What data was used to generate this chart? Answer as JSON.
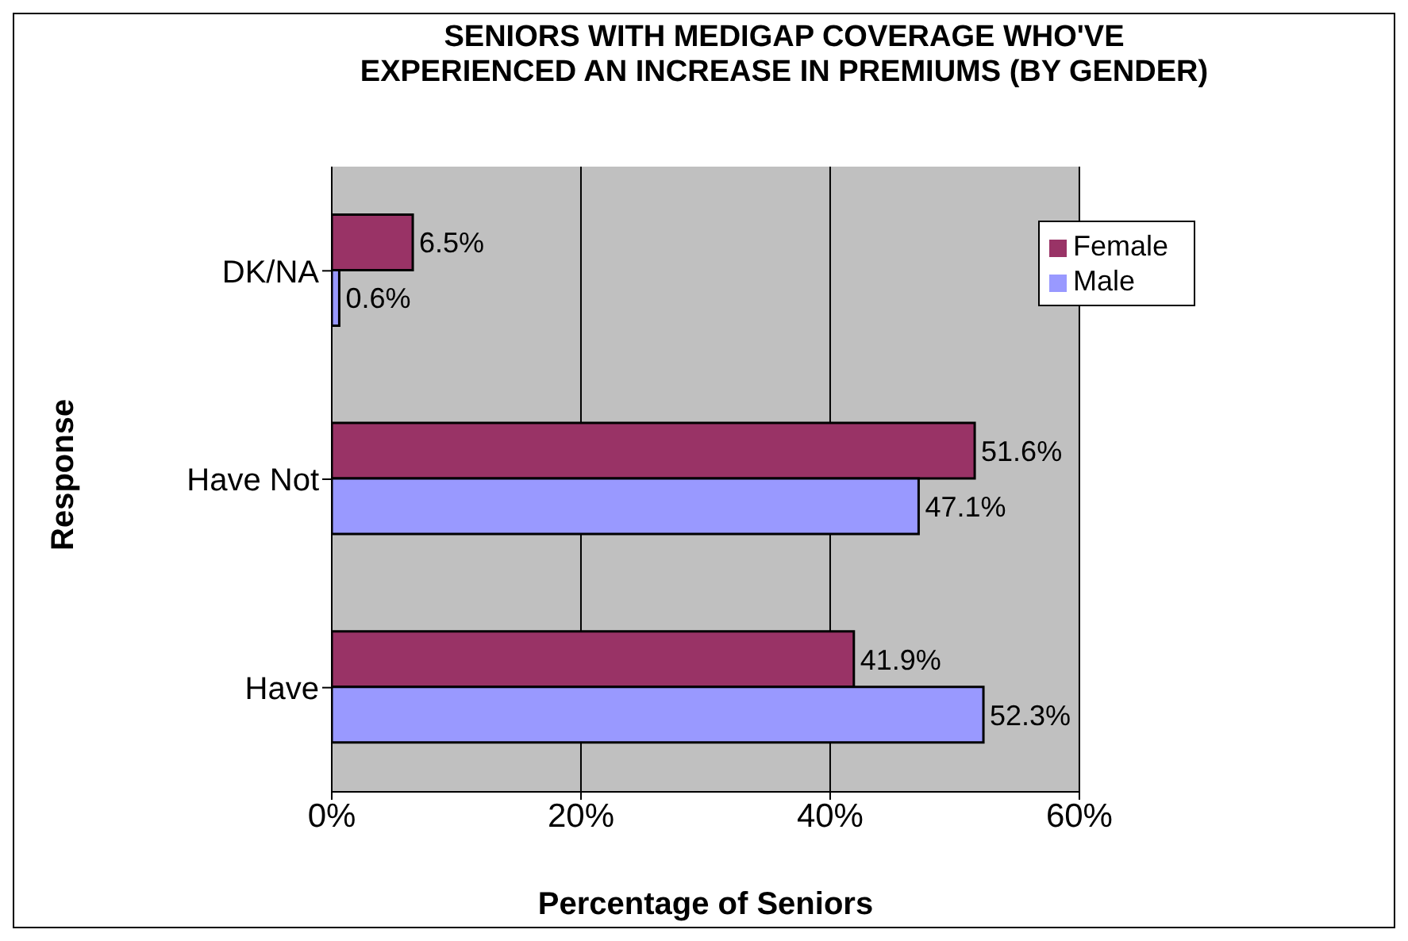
{
  "chart_data": {
    "type": "bar",
    "orientation": "horizontal",
    "title": "SENIORS WITH MEDIGAP COVERAGE WHO'VE EXPERIENCED AN INCREASE IN PREMIUMS (BY GENDER)",
    "xlabel": "Percentage of Seniors",
    "ylabel": "Response",
    "categories": [
      "DK/NA",
      "Have Not",
      "Have"
    ],
    "series": [
      {
        "name": "Female",
        "color": "#993366",
        "values": [
          6.5,
          51.6,
          41.9
        ],
        "value_labels": [
          "6.5%",
          "51.6%",
          "41.9%"
        ]
      },
      {
        "name": "Male",
        "color": "#9999ff",
        "values": [
          0.6,
          47.1,
          52.3
        ],
        "value_labels": [
          "0.6%",
          "47.1%",
          "52.3%"
        ]
      }
    ],
    "xlim": [
      0,
      60
    ],
    "xticks": [
      {
        "value": 0,
        "label": "0%"
      },
      {
        "value": 20,
        "label": "20%"
      },
      {
        "value": 40,
        "label": "40%"
      },
      {
        "value": 60,
        "label": "60%"
      }
    ],
    "grid": "x",
    "legend": "top right"
  }
}
